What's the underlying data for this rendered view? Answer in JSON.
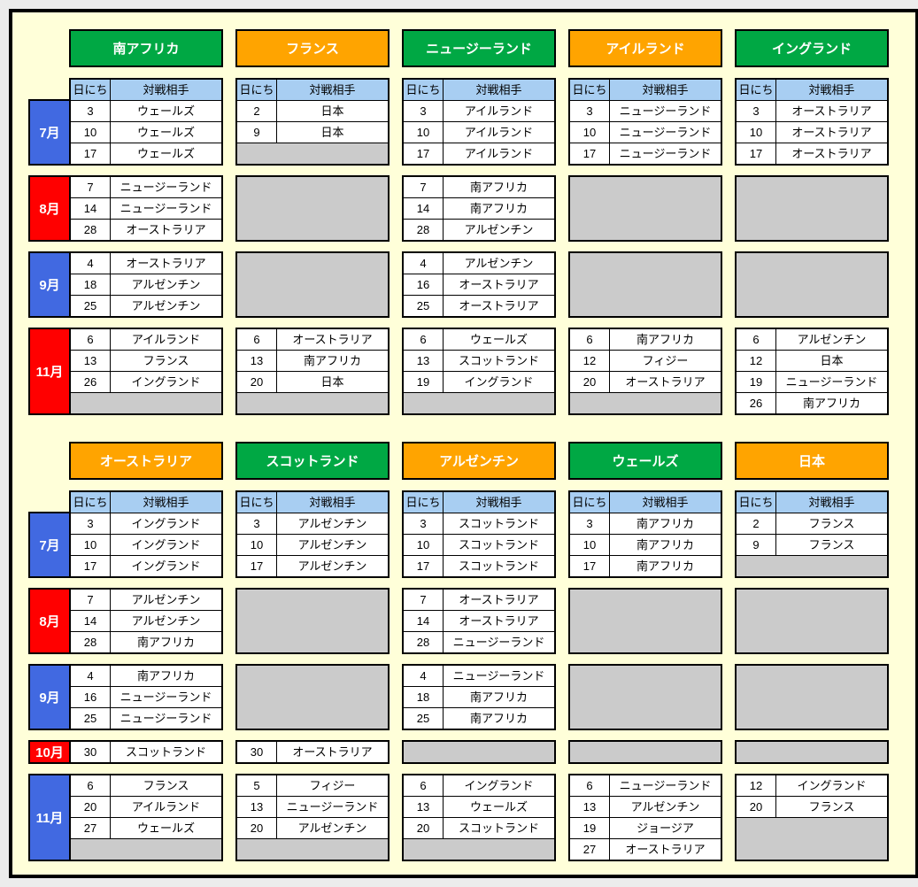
{
  "window": {
    "outer_bg": "#ECECEC",
    "board_bg": "#FFFFD9",
    "border": "#000000"
  },
  "colors": {
    "green": "#00A844",
    "orange": "#FFA400",
    "blue": "#4169E1",
    "red": "#FF0000",
    "header_blue": "#A8CEF2",
    "gray": "#CBCBCB"
  },
  "column_headers": {
    "date": "日にち",
    "opponent": "対戦相手"
  },
  "sections": [
    {
      "name": "top",
      "months": [
        {
          "label": "7月",
          "color": "blue",
          "rows": 3
        },
        {
          "label": "8月",
          "color": "red",
          "rows": 3
        },
        {
          "label": "9月",
          "color": "blue",
          "rows": 3
        },
        {
          "label": "11月",
          "color": "red",
          "rows": 4
        }
      ],
      "teams": [
        {
          "name": "南アフリカ",
          "header_color": "green",
          "blocks": [
            [
              [
                "3",
                "ウェールズ"
              ],
              [
                "10",
                "ウェールズ"
              ],
              [
                "17",
                "ウェールズ"
              ]
            ],
            [
              [
                "7",
                "ニュージーランド"
              ],
              [
                "14",
                "ニュージーランド"
              ],
              [
                "28",
                "オーストラリア"
              ]
            ],
            [
              [
                "4",
                "オーストラリア"
              ],
              [
                "18",
                "アルゼンチン"
              ],
              [
                "25",
                "アルゼンチン"
              ]
            ],
            [
              [
                "6",
                "アイルランド"
              ],
              [
                "13",
                "フランス"
              ],
              [
                "26",
                "イングランド"
              ]
            ]
          ]
        },
        {
          "name": "フランス",
          "header_color": "orange",
          "blocks": [
            [
              [
                "2",
                "日本"
              ],
              [
                "9",
                "日本"
              ]
            ],
            [],
            [],
            [
              [
                "6",
                "オーストラリア"
              ],
              [
                "13",
                "南アフリカ"
              ],
              [
                "20",
                "日本"
              ]
            ]
          ]
        },
        {
          "name": "ニュージーランド",
          "header_color": "green",
          "blocks": [
            [
              [
                "3",
                "アイルランド"
              ],
              [
                "10",
                "アイルランド"
              ],
              [
                "17",
                "アイルランド"
              ]
            ],
            [
              [
                "7",
                "南アフリカ"
              ],
              [
                "14",
                "南アフリカ"
              ],
              [
                "28",
                "アルゼンチン"
              ]
            ],
            [
              [
                "4",
                "アルゼンチン"
              ],
              [
                "16",
                "オーストラリア"
              ],
              [
                "25",
                "オーストラリア"
              ]
            ],
            [
              [
                "6",
                "ウェールズ"
              ],
              [
                "13",
                "スコットランド"
              ],
              [
                "19",
                "イングランド"
              ]
            ]
          ]
        },
        {
          "name": "アイルランド",
          "header_color": "orange",
          "blocks": [
            [
              [
                "3",
                "ニュージーランド"
              ],
              [
                "10",
                "ニュージーランド"
              ],
              [
                "17",
                "ニュージーランド"
              ]
            ],
            [],
            [],
            [
              [
                "6",
                "南アフリカ"
              ],
              [
                "12",
                "フィジー"
              ],
              [
                "20",
                "オーストラリア"
              ]
            ]
          ]
        },
        {
          "name": "イングランド",
          "header_color": "green",
          "blocks": [
            [
              [
                "3",
                "オーストラリア"
              ],
              [
                "10",
                "オーストラリア"
              ],
              [
                "17",
                "オーストラリア"
              ]
            ],
            [],
            [],
            [
              [
                "6",
                "アルゼンチン"
              ],
              [
                "12",
                "日本"
              ],
              [
                "19",
                "ニュージーランド"
              ],
              [
                "26",
                "南アフリカ"
              ]
            ]
          ]
        }
      ]
    },
    {
      "name": "bottom",
      "months": [
        {
          "label": "7月",
          "color": "blue",
          "rows": 3
        },
        {
          "label": "8月",
          "color": "red",
          "rows": 3
        },
        {
          "label": "9月",
          "color": "blue",
          "rows": 3
        },
        {
          "label": "10月",
          "color": "red",
          "rows": 1
        },
        {
          "label": "11月",
          "color": "blue",
          "rows": 4
        }
      ],
      "teams": [
        {
          "name": "オーストラリア",
          "header_color": "orange",
          "blocks": [
            [
              [
                "3",
                "イングランド"
              ],
              [
                "10",
                "イングランド"
              ],
              [
                "17",
                "イングランド"
              ]
            ],
            [
              [
                "7",
                "アルゼンチン"
              ],
              [
                "14",
                "アルゼンチン"
              ],
              [
                "28",
                "南アフリカ"
              ]
            ],
            [
              [
                "4",
                "南アフリカ"
              ],
              [
                "16",
                "ニュージーランド"
              ],
              [
                "25",
                "ニュージーランド"
              ]
            ],
            [
              [
                "30",
                "スコットランド"
              ]
            ],
            [
              [
                "6",
                "フランス"
              ],
              [
                "20",
                "アイルランド"
              ],
              [
                "27",
                "ウェールズ"
              ]
            ]
          ]
        },
        {
          "name": "スコットランド",
          "header_color": "green",
          "blocks": [
            [
              [
                "3",
                "アルゼンチン"
              ],
              [
                "10",
                "アルゼンチン"
              ],
              [
                "17",
                "アルゼンチン"
              ]
            ],
            [],
            [],
            [
              [
                "30",
                "オーストラリア"
              ]
            ],
            [
              [
                "5",
                "フィジー"
              ],
              [
                "13",
                "ニュージーランド"
              ],
              [
                "20",
                "アルゼンチン"
              ]
            ]
          ]
        },
        {
          "name": "アルゼンチン",
          "header_color": "orange",
          "blocks": [
            [
              [
                "3",
                "スコットランド"
              ],
              [
                "10",
                "スコットランド"
              ],
              [
                "17",
                "スコットランド"
              ]
            ],
            [
              [
                "7",
                "オーストラリア"
              ],
              [
                "14",
                "オーストラリア"
              ],
              [
                "28",
                "ニュージーランド"
              ]
            ],
            [
              [
                "4",
                "ニュージーランド"
              ],
              [
                "18",
                "南アフリカ"
              ],
              [
                "25",
                "南アフリカ"
              ]
            ],
            [],
            [
              [
                "6",
                "イングランド"
              ],
              [
                "13",
                "ウェールズ"
              ],
              [
                "20",
                "スコットランド"
              ]
            ]
          ]
        },
        {
          "name": "ウェールズ",
          "header_color": "green",
          "blocks": [
            [
              [
                "3",
                "南アフリカ"
              ],
              [
                "10",
                "南アフリカ"
              ],
              [
                "17",
                "南アフリカ"
              ]
            ],
            [],
            [],
            [],
            [
              [
                "6",
                "ニュージーランド"
              ],
              [
                "13",
                "アルゼンチン"
              ],
              [
                "19",
                "ジョージア"
              ],
              [
                "27",
                "オーストラリア"
              ]
            ]
          ]
        },
        {
          "name": "日本",
          "header_color": "orange",
          "blocks": [
            [
              [
                "2",
                "フランス"
              ],
              [
                "9",
                "フランス"
              ]
            ],
            [],
            [],
            [],
            [
              [
                "12",
                "イングランド"
              ],
              [
                "20",
                "フランス"
              ]
            ]
          ]
        }
      ]
    }
  ]
}
